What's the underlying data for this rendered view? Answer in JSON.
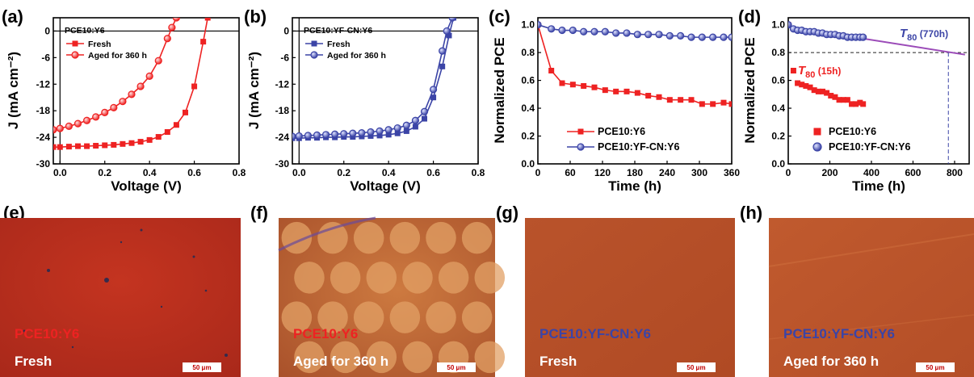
{
  "colors": {
    "red": "#ee2222",
    "blue": "#3b44a6",
    "purple": "#9b4bb8"
  },
  "chart_data": [
    {
      "type": "line",
      "panel_label": "(a)",
      "title": "PCE10:Y6",
      "xlabel": "Voltage (V)",
      "ylabel": "J (mA cm⁻²)",
      "xlim": [
        -0.03,
        0.8
      ],
      "ylim": [
        -30,
        3
      ],
      "xticks": [
        0.0,
        0.2,
        0.4,
        0.6,
        0.8
      ],
      "xtick_labels": [
        "0.0",
        "0.2",
        "0.4",
        "0.6",
        "0.8"
      ],
      "yticks": [
        -30,
        -24,
        -18,
        -12,
        -6,
        0
      ],
      "ytick_labels": [
        "-30",
        "-24",
        "-18",
        "-12",
        "-6",
        "0"
      ],
      "legend_position": "top-left",
      "series": [
        {
          "name": "Fresh",
          "marker": "square",
          "color": "#ee2222",
          "x": [
            -0.03,
            0.0,
            0.04,
            0.08,
            0.12,
            0.16,
            0.2,
            0.24,
            0.28,
            0.32,
            0.36,
            0.4,
            0.44,
            0.48,
            0.52,
            0.56,
            0.6,
            0.64,
            0.66
          ],
          "y": [
            -26.2,
            -26.2,
            -26.1,
            -26.0,
            -26.0,
            -25.9,
            -25.8,
            -25.7,
            -25.5,
            -25.3,
            -25.0,
            -24.6,
            -23.9,
            -22.8,
            -21.2,
            -18.4,
            -12.5,
            -2.4,
            3.0
          ]
        },
        {
          "name": "Aged for 360 h",
          "marker": "circle",
          "color": "#ee2222",
          "x": [
            -0.03,
            0.0,
            0.04,
            0.08,
            0.12,
            0.16,
            0.2,
            0.24,
            0.28,
            0.32,
            0.36,
            0.4,
            0.44,
            0.48,
            0.5,
            0.52
          ],
          "y": [
            -22.3,
            -22.0,
            -21.5,
            -20.9,
            -20.2,
            -19.4,
            -18.4,
            -17.3,
            -15.9,
            -14.3,
            -12.5,
            -10.2,
            -6.7,
            -1.7,
            0.8,
            3.0
          ]
        }
      ]
    },
    {
      "type": "line",
      "panel_label": "(b)",
      "title": "PCE10:YF-CN:Y6",
      "xlabel": "Voltage (V)",
      "ylabel": "J (mA cm⁻²)",
      "xlim": [
        -0.03,
        0.8
      ],
      "ylim": [
        -30,
        3
      ],
      "xticks": [
        0.0,
        0.2,
        0.4,
        0.6,
        0.8
      ],
      "xtick_labels": [
        "0.0",
        "0.2",
        "0.4",
        "0.6",
        "0.8"
      ],
      "yticks": [
        -30,
        -24,
        -18,
        -12,
        -6,
        0
      ],
      "ytick_labels": [
        "-30",
        "-24",
        "-18",
        "-12",
        "-6",
        "0"
      ],
      "legend_position": "top-left",
      "series": [
        {
          "name": "Fresh",
          "marker": "square",
          "color": "#3b44a6",
          "x": [
            -0.03,
            0.0,
            0.04,
            0.08,
            0.12,
            0.16,
            0.2,
            0.24,
            0.28,
            0.32,
            0.36,
            0.4,
            0.44,
            0.48,
            0.52,
            0.56,
            0.6,
            0.64,
            0.67,
            0.69
          ],
          "y": [
            -24.2,
            -24.2,
            -24.1,
            -24.1,
            -24.0,
            -24.0,
            -23.9,
            -23.9,
            -23.8,
            -23.7,
            -23.6,
            -23.4,
            -23.1,
            -22.6,
            -21.6,
            -19.8,
            -15.0,
            -8.0,
            -1.0,
            3.0
          ]
        },
        {
          "name": "Aged for 360 h",
          "marker": "circle",
          "color": "#3b44a6",
          "x": [
            -0.03,
            0.0,
            0.04,
            0.08,
            0.12,
            0.16,
            0.2,
            0.24,
            0.28,
            0.32,
            0.36,
            0.4,
            0.44,
            0.48,
            0.52,
            0.56,
            0.6,
            0.64,
            0.66,
            0.685
          ],
          "y": [
            -23.8,
            -23.7,
            -23.6,
            -23.5,
            -23.4,
            -23.3,
            -23.2,
            -23.1,
            -23.0,
            -22.8,
            -22.6,
            -22.3,
            -21.9,
            -21.3,
            -20.2,
            -18.2,
            -13.2,
            -4.5,
            0.0,
            3.0
          ]
        }
      ]
    },
    {
      "type": "line",
      "panel_label": "(c)",
      "xlabel": "Time (h)",
      "ylabel": "Normalized PCE",
      "xlim": [
        0,
        360
      ],
      "ylim": [
        0,
        1.05
      ],
      "xticks": [
        0,
        60,
        120,
        180,
        240,
        300,
        360
      ],
      "xtick_labels": [
        "0",
        "60",
        "120",
        "180",
        "240",
        "300",
        "360"
      ],
      "yticks": [
        0.0,
        0.2,
        0.4,
        0.6,
        0.8,
        1.0
      ],
      "ytick_labels": [
        "0.0",
        "0.2",
        "0.4",
        "0.6",
        "0.8",
        "1.0"
      ],
      "legend_position": "bottom-left",
      "series": [
        {
          "name": "PCE10:Y6",
          "marker": "square",
          "color": "#ee2222",
          "x": [
            0,
            25,
            45,
            65,
            85,
            105,
            125,
            145,
            165,
            185,
            205,
            225,
            245,
            265,
            285,
            305,
            325,
            345,
            360
          ],
          "y": [
            1.0,
            0.67,
            0.58,
            0.57,
            0.56,
            0.55,
            0.53,
            0.52,
            0.52,
            0.51,
            0.49,
            0.48,
            0.46,
            0.46,
            0.46,
            0.43,
            0.43,
            0.44,
            0.43
          ]
        },
        {
          "name": "PCE10:YF-CN:Y6",
          "marker": "circle",
          "color": "#3b44a6",
          "x": [
            0,
            25,
            45,
            65,
            85,
            105,
            125,
            145,
            165,
            185,
            205,
            225,
            245,
            265,
            285,
            305,
            325,
            345,
            360
          ],
          "y": [
            1.0,
            0.97,
            0.96,
            0.96,
            0.95,
            0.95,
            0.95,
            0.94,
            0.94,
            0.93,
            0.93,
            0.93,
            0.92,
            0.92,
            0.91,
            0.91,
            0.91,
            0.91,
            0.91
          ]
        }
      ]
    },
    {
      "type": "scatter",
      "panel_label": "(d)",
      "xlabel": "Time (h)",
      "ylabel": "Normalized PCE",
      "xlim": [
        0,
        870
      ],
      "ylim": [
        0,
        1.05
      ],
      "xticks": [
        0,
        200,
        400,
        600,
        800
      ],
      "xtick_labels": [
        "0",
        "200",
        "400",
        "600",
        "800"
      ],
      "yticks": [
        0.0,
        0.2,
        0.4,
        0.6,
        0.8,
        1.0
      ],
      "ytick_labels": [
        "0.0",
        "0.2",
        "0.4",
        "0.6",
        "0.8",
        "1.0"
      ],
      "legend_position": "bottom-left",
      "reference_y": 0.8,
      "fit_line": {
        "x": [
          0,
          850
        ],
        "y": [
          0.985,
          0.785
        ]
      },
      "annotations": [
        {
          "text_main": "T",
          "text_sub": "80",
          "text_rest": " (15h)",
          "color": "#ee2222",
          "x": 15,
          "y": 0.8
        },
        {
          "text_main": "T",
          "text_sub": "80",
          "text_rest": " (770h)",
          "color": "#3b44a6",
          "x": 770,
          "y": 0.8
        }
      ],
      "series": [
        {
          "name": "PCE10:Y6",
          "marker": "square",
          "color": "#ee2222",
          "x": [
            0,
            25,
            45,
            65,
            85,
            105,
            125,
            145,
            165,
            185,
            205,
            225,
            245,
            265,
            285,
            305,
            325,
            345,
            360
          ],
          "y": [
            1.0,
            0.67,
            0.58,
            0.57,
            0.56,
            0.55,
            0.53,
            0.52,
            0.52,
            0.51,
            0.49,
            0.48,
            0.46,
            0.46,
            0.46,
            0.43,
            0.43,
            0.44,
            0.43
          ]
        },
        {
          "name": "PCE10:YF-CN:Y6",
          "marker": "circle",
          "color": "#3b44a6",
          "x": [
            0,
            25,
            45,
            65,
            85,
            105,
            125,
            145,
            165,
            185,
            205,
            225,
            245,
            265,
            285,
            305,
            325,
            345,
            360
          ],
          "y": [
            1.0,
            0.97,
            0.96,
            0.96,
            0.95,
            0.95,
            0.95,
            0.94,
            0.94,
            0.93,
            0.93,
            0.93,
            0.92,
            0.92,
            0.91,
            0.91,
            0.91,
            0.91,
            0.91
          ]
        }
      ]
    }
  ],
  "micrographs": [
    {
      "panel_label": "(e)",
      "material": "PCE10:Y6",
      "material_color": "#ee2222",
      "condition": "Fresh",
      "scale_bar": "50 μm",
      "texture": "fresh-red"
    },
    {
      "panel_label": "(f)",
      "material": "PCE10:Y6",
      "material_color": "#ee2222",
      "condition": "Aged for 360 h",
      "scale_bar": "50 μm",
      "texture": "aged-domains"
    },
    {
      "panel_label": "(g)",
      "material": "PCE10:YF-CN:Y6",
      "material_color": "#3b44a6",
      "condition": "Fresh",
      "scale_bar": "50 μm",
      "texture": "smooth-orange"
    },
    {
      "panel_label": "(h)",
      "material": "PCE10:YF-CN:Y6",
      "material_color": "#3b44a6",
      "condition": "Aged for 360 h",
      "scale_bar": "50 μm",
      "texture": "smooth-orange-streak"
    }
  ]
}
